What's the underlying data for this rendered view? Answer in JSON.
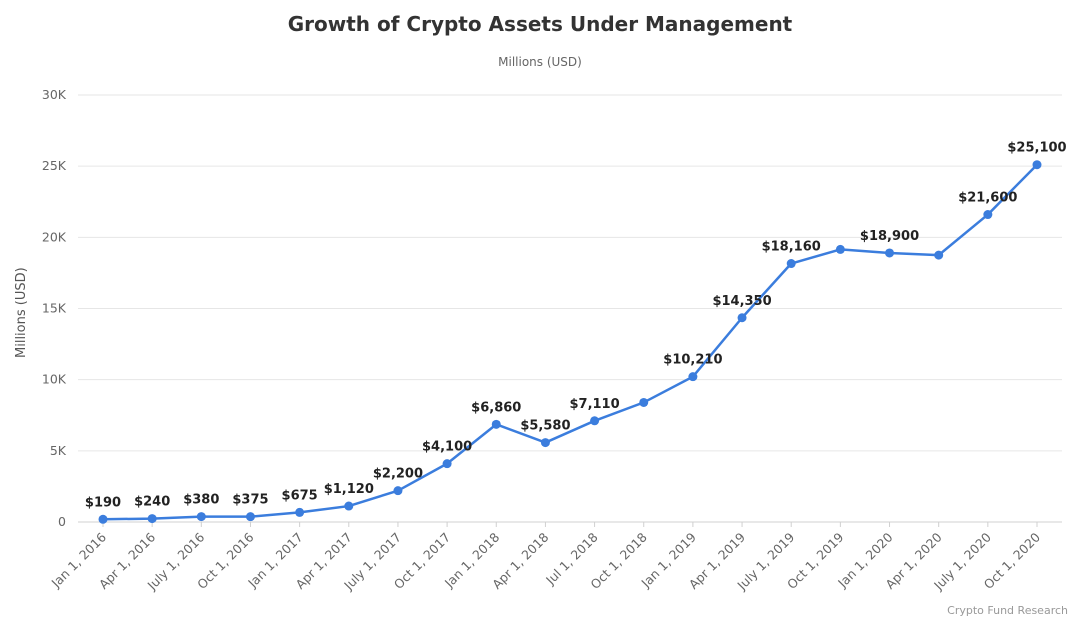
{
  "title": "Growth of Crypto Assets Under Management",
  "subtitle": "Millions (USD)",
  "credits": "Crypto Fund Research",
  "chart_data": {
    "type": "line",
    "title": "Growth of Crypto Assets Under Management",
    "subtitle": "Millions (USD)",
    "xlabel": "",
    "ylabel": "Millions (USD)",
    "ylim": [
      0,
      30000
    ],
    "yticks": [
      0,
      5000,
      10000,
      15000,
      20000,
      25000,
      30000
    ],
    "ytick_labels": [
      "0",
      "5K",
      "10K",
      "15K",
      "20K",
      "25K",
      "30K"
    ],
    "grid": true,
    "legend": "none",
    "line_color": "#3b7ddd",
    "grid_color": "#e6e6e6",
    "axis_line_color": "#d0d0d0",
    "tick_label_color": "#666666",
    "point_label_color": "#222222",
    "categories": [
      "Jan 1, 2016",
      "Apr 1, 2016",
      "July 1, 2016",
      "Oct 1, 2016",
      "Jan 1, 2017",
      "Apr 1, 2017",
      "July 1, 2017",
      "Oct 1, 2017",
      "Jan 1, 2018",
      "Apr 1, 2018",
      "Jul 1, 2018",
      "Oct 1, 2018",
      "Jan 1, 2019",
      "Apr 1, 2019",
      "July 1, 2019",
      "Oct 1, 2019",
      "Jan 1, 2020",
      "Apr 1, 2020",
      "July 1, 2020",
      "Oct 1, 2020"
    ],
    "values": [
      190,
      240,
      380,
      375,
      675,
      1120,
      2200,
      4100,
      6860,
      5580,
      7110,
      8400,
      10210,
      14350,
      18160,
      19150,
      18900,
      18750,
      21600,
      25100
    ],
    "point_labels": [
      "$190",
      "$240",
      "$380",
      "$375",
      "$675",
      "$1,120",
      "$2,200",
      "$4,100",
      "$6,860",
      "$5,580",
      "$7,110",
      "",
      "$10,210",
      "$14,350",
      "$18,160",
      "",
      "$18,900",
      "",
      "$21,600",
      "$25,100"
    ]
  }
}
